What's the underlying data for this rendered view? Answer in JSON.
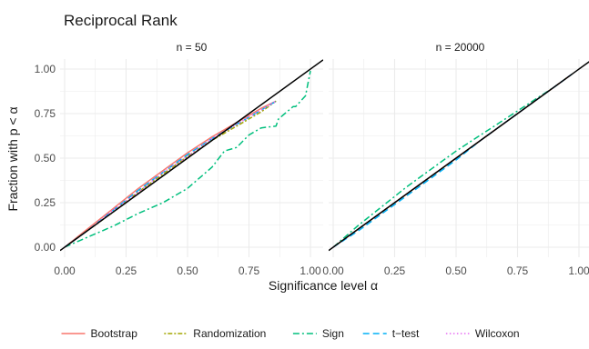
{
  "chart_data": {
    "type": "line",
    "title": "Reciprocal Rank",
    "xlabel": "Significance level α",
    "ylabel": "Fraction with p < α",
    "xlim": [
      0,
      1
    ],
    "ylim": [
      0,
      1
    ],
    "x_ticks": [
      "0.00",
      "0.25",
      "0.50",
      "0.75",
      "1.00"
    ],
    "y_ticks": [
      "0.00",
      "0.25",
      "0.50",
      "0.75",
      "1.00"
    ],
    "grid": true,
    "legend_position": "bottom",
    "legend": [
      {
        "name": "Bootstrap",
        "color": "#F8766D",
        "dash": "solid"
      },
      {
        "name": "Randomization",
        "color": "#A3A500",
        "dash": "dotted-dash"
      },
      {
        "name": "Sign",
        "color": "#00BF7D",
        "dash": "dash-dot"
      },
      {
        "name": "t−test",
        "color": "#00B0F6",
        "dash": "long-dash"
      },
      {
        "name": "Wilcoxon",
        "color": "#E76BF3",
        "dash": "dotted"
      }
    ],
    "reference_line": {
      "color": "#000000",
      "points": [
        [
          0,
          0
        ],
        [
          1,
          1
        ]
      ]
    },
    "panels": [
      {
        "title": "n = 50",
        "series": [
          {
            "name": "Bootstrap",
            "x": [
              0,
              0.1,
              0.2,
              0.3,
              0.4,
              0.5,
              0.6,
              0.7,
              0.8,
              0.86
            ],
            "y": [
              0,
              0.11,
              0.22,
              0.33,
              0.43,
              0.53,
              0.62,
              0.7,
              0.78,
              0.82
            ]
          },
          {
            "name": "Randomization",
            "x": [
              0,
              0.1,
              0.2,
              0.3,
              0.4,
              0.5,
              0.6,
              0.7,
              0.8,
              0.86
            ],
            "y": [
              0,
              0.1,
              0.2,
              0.31,
              0.41,
              0.51,
              0.6,
              0.68,
              0.76,
              0.82
            ]
          },
          {
            "name": "Sign",
            "x": [
              0,
              0.1,
              0.2,
              0.3,
              0.4,
              0.5,
              0.6,
              0.65,
              0.7,
              0.75,
              0.8,
              0.86,
              0.87,
              0.93,
              0.94,
              0.98,
              1.0
            ],
            "y": [
              0,
              0.06,
              0.12,
              0.19,
              0.25,
              0.33,
              0.45,
              0.54,
              0.56,
              0.63,
              0.67,
              0.68,
              0.72,
              0.79,
              0.79,
              0.85,
              0.99
            ]
          },
          {
            "name": "t−test",
            "x": [
              0,
              0.1,
              0.2,
              0.3,
              0.4,
              0.5,
              0.6,
              0.7,
              0.8,
              0.86
            ],
            "y": [
              0,
              0.1,
              0.21,
              0.32,
              0.42,
              0.52,
              0.61,
              0.69,
              0.77,
              0.82
            ]
          },
          {
            "name": "Wilcoxon",
            "x": [
              0,
              0.1,
              0.2,
              0.3,
              0.4,
              0.5,
              0.6,
              0.7,
              0.8,
              0.86
            ],
            "y": [
              0,
              0.1,
              0.21,
              0.31,
              0.42,
              0.51,
              0.61,
              0.69,
              0.77,
              0.82
            ]
          }
        ]
      },
      {
        "title": "n = 20000",
        "series": [
          {
            "name": "Bootstrap",
            "x": [
              0,
              0.1,
              0.2,
              0.3,
              0.4,
              0.5,
              0.6,
              0.7,
              0.8,
              0.9,
              0.97
            ],
            "y": [
              0,
              0.1,
              0.2,
              0.3,
              0.4,
              0.5,
              0.6,
              0.7,
              0.8,
              0.9,
              0.97
            ]
          },
          {
            "name": "Randomization",
            "x": [
              0,
              0.1,
              0.2,
              0.3,
              0.4,
              0.5,
              0.6,
              0.7,
              0.8,
              0.9,
              0.97
            ],
            "y": [
              0,
              0.1,
              0.2,
              0.3,
              0.4,
              0.5,
              0.6,
              0.7,
              0.8,
              0.9,
              0.97
            ]
          },
          {
            "name": "Sign",
            "x": [
              0,
              0.1,
              0.2,
              0.3,
              0.4,
              0.5,
              0.6,
              0.7,
              0.8,
              0.9,
              0.97
            ],
            "y": [
              0,
              0.12,
              0.23,
              0.34,
              0.44,
              0.54,
              0.63,
              0.72,
              0.81,
              0.9,
              0.97
            ]
          },
          {
            "name": "t−test",
            "x": [
              0,
              0.1,
              0.2,
              0.3,
              0.4,
              0.5,
              0.6,
              0.7,
              0.8,
              0.9,
              0.97
            ],
            "y": [
              0,
              0.09,
              0.19,
              0.29,
              0.39,
              0.49,
              0.6,
              0.7,
              0.8,
              0.9,
              0.97
            ]
          },
          {
            "name": "Wilcoxon",
            "x": [
              0,
              0.1,
              0.2,
              0.3,
              0.4,
              0.5,
              0.6,
              0.7,
              0.8,
              0.9,
              0.97
            ],
            "y": [
              0,
              0.1,
              0.2,
              0.3,
              0.4,
              0.5,
              0.6,
              0.7,
              0.8,
              0.9,
              0.97
            ]
          }
        ]
      }
    ]
  }
}
